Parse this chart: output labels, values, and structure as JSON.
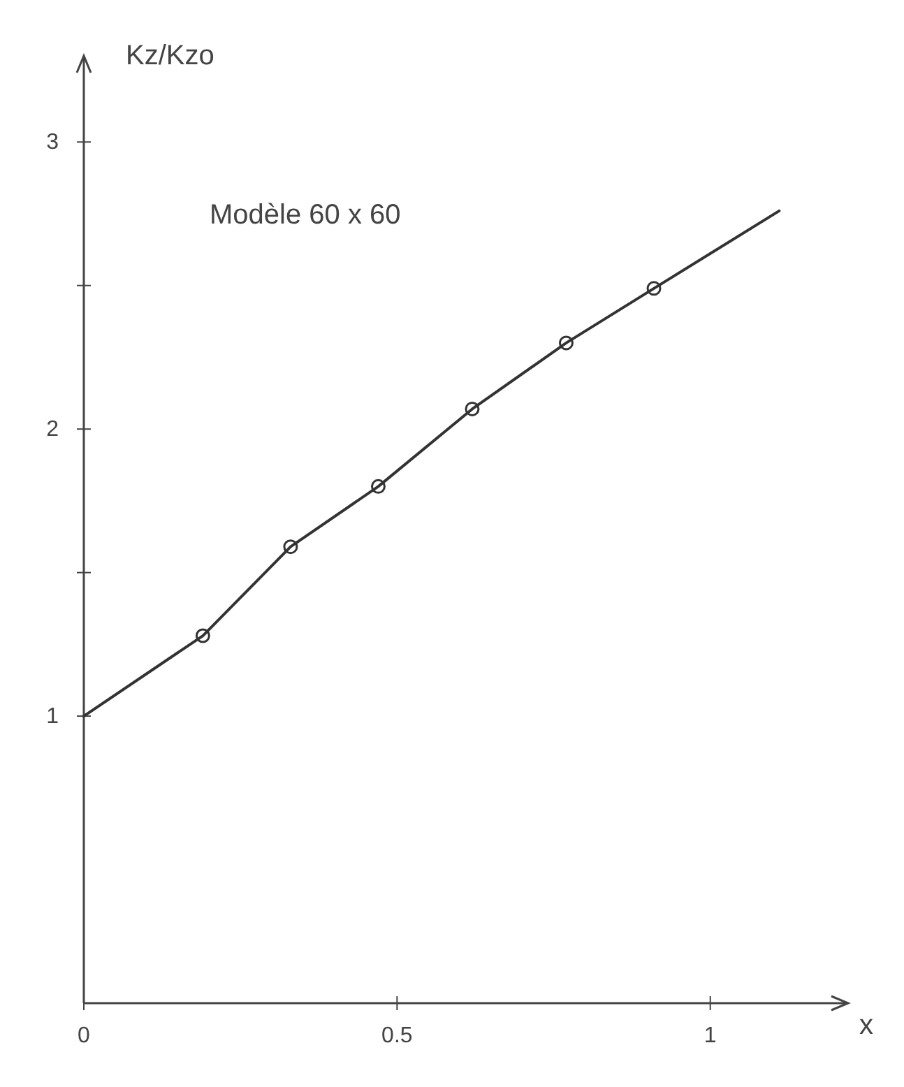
{
  "chart_data": {
    "type": "line",
    "ylabel": "Kz/Kzo",
    "xlabel": "x",
    "annotations": [
      "Modèle 60 x 60"
    ],
    "series": [
      {
        "color": "#333333",
        "marker": "none",
        "x": [
          0,
          0.19,
          0.33,
          0.47,
          0.62,
          0.77,
          0.91,
          1.11
        ],
        "values": [
          1,
          1.28,
          1.59,
          1.8,
          2.07,
          2.3,
          2.49,
          2.76
        ]
      },
      {
        "type": "scatter",
        "color": "#333333",
        "marker": "circle",
        "x": [
          0.19,
          0.33,
          0.47,
          0.62,
          0.77,
          0.91
        ],
        "values": [
          1.28,
          1.59,
          1.8,
          2.07,
          2.3,
          2.49
        ]
      }
    ],
    "xlim": [
      0,
      1.22
    ],
    "ylim": [
      0,
      3.3
    ],
    "xticks": [
      0,
      0.5,
      1
    ],
    "yticks": [
      1,
      {
        "value": 1.5,
        "label": null
      },
      2,
      {
        "value": 2.5,
        "label": null
      },
      3
    ],
    "grid": false
  }
}
